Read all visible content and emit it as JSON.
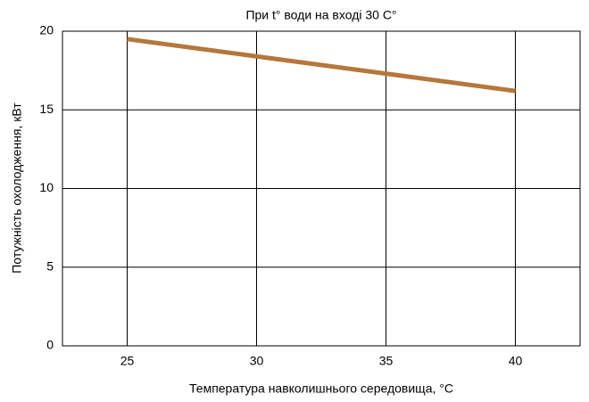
{
  "chart_data": {
    "type": "line",
    "title": "При t° води на вході 30 С°",
    "x_label": "Температура навколишнього середовища, °C",
    "y_label": "Потужність охолодження, кВт",
    "x": [
      25,
      30,
      35,
      40
    ],
    "series": [
      {
        "name": "Потужність охолодження",
        "color": "#b5773a",
        "values": [
          19.5,
          18.4,
          17.3,
          16.2
        ]
      }
    ],
    "xlim": [
      22.5,
      42.5
    ],
    "xticks": [
      25,
      30,
      35,
      40
    ],
    "ylim": [
      0,
      20
    ],
    "yticks": [
      0,
      5,
      10,
      15,
      20
    ],
    "grid": true
  }
}
